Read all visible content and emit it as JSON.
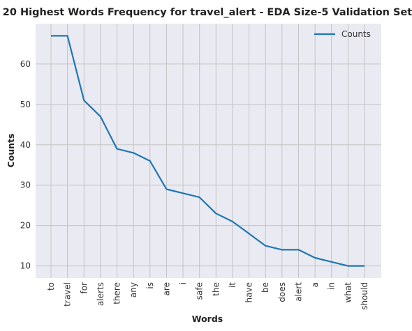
{
  "chart_data": {
    "type": "line",
    "title": "20 Highest Words Frequency for travel_alert - EDA Size-5 Validation Set",
    "xlabel": "Words",
    "ylabel": "Counts",
    "categories": [
      "to",
      "travel",
      "for",
      "alerts",
      "there",
      "any",
      "is",
      "are",
      "i",
      "safe",
      "the",
      "it",
      "have",
      "be",
      "does",
      "alert",
      "a",
      "in",
      "what",
      "should"
    ],
    "series": [
      {
        "name": "Counts",
        "values": [
          67,
          67,
          51,
          47,
          39,
          38,
          36,
          29,
          28,
          27,
          23,
          21,
          18,
          15,
          14,
          14,
          12,
          11,
          10,
          10
        ]
      }
    ],
    "ylim": [
      7,
      70
    ],
    "yticks": [
      10,
      20,
      30,
      40,
      50,
      60
    ],
    "grid": true,
    "legend": "top-right",
    "colors": {
      "background": "#eaeaf2",
      "grid": "#c4c4c4",
      "line": "#1f77b4"
    }
  }
}
